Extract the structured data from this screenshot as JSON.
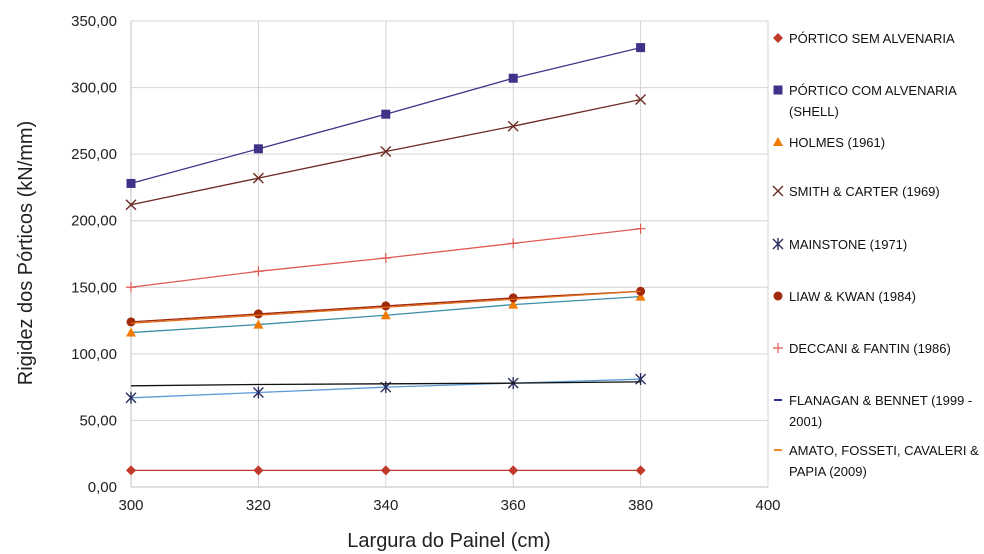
{
  "chart_data": {
    "type": "line",
    "xlabel": "Largura do Painel (cm)",
    "ylabel": "Rigidez dos Pórticos (kN/mm)",
    "xlim": [
      300,
      400
    ],
    "ylim": [
      0,
      350
    ],
    "x_ticks": [
      300,
      320,
      340,
      360,
      380,
      400
    ],
    "y_ticks": [
      "0,00",
      "50,00",
      "100,00",
      "150,00",
      "200,00",
      "250,00",
      "300,00",
      "350,00"
    ],
    "grid": true,
    "legend_position": "right",
    "series": [
      {
        "name": "PÓRTICO SEM ALVENARIA",
        "color": "#c0392b",
        "marker": "diamond",
        "x": [
          300,
          320,
          340,
          360,
          380
        ],
        "y": [
          12.5,
          12.5,
          12.5,
          12.5,
          12.5
        ]
      },
      {
        "name": "PÓRTICO COM ALVENARIA (SHELL)",
        "color": "#3f3288",
        "marker": "square",
        "x": [
          300,
          320,
          340,
          360,
          380
        ],
        "y": [
          228,
          254,
          280,
          307,
          330
        ]
      },
      {
        "name": "HOLMES (1961)",
        "color": "#f07b00",
        "marker": "triangle",
        "line_color": "#3a8fa6",
        "x": [
          300,
          320,
          340,
          360,
          380
        ],
        "y": [
          116,
          122,
          129,
          137,
          143
        ]
      },
      {
        "name": "SMITH & CARTER (1969)",
        "color": "#6b2a22",
        "marker": "x",
        "x": [
          300,
          320,
          340,
          360,
          380
        ],
        "y": [
          212,
          232,
          252,
          271,
          291
        ]
      },
      {
        "name": "MAINSTONE (1971)",
        "color": "#2a2e5e",
        "marker": "asterisk",
        "line_color": "#5b9bd5",
        "x": [
          300,
          320,
          340,
          360,
          380
        ],
        "y": [
          67,
          71,
          75,
          78,
          81
        ]
      },
      {
        "name": "LIAW & KWAN (1984)",
        "color": "#a12a0a",
        "marker": "circle",
        "x": [
          300,
          320,
          340,
          360,
          380
        ],
        "y": [
          124,
          130,
          136,
          142,
          147
        ]
      },
      {
        "name": "DECCANI & FANTIN (1986)",
        "color": "#e05a50",
        "marker": "plus",
        "x": [
          300,
          320,
          340,
          360,
          380
        ],
        "y": [
          150,
          162,
          172,
          183,
          194
        ]
      },
      {
        "name": "FLANAGAN & BENNET (1999 - 2001)",
        "color": "#2b2ba0",
        "marker": "dash",
        "line_color": "#111111",
        "x": [
          300,
          320,
          340,
          360,
          380
        ],
        "y": [
          76,
          77,
          77.5,
          78,
          79
        ]
      },
      {
        "name": "AMATO, FOSSETI, CAVALERI & PAPIA (2009)",
        "color": "#f08a2a",
        "marker": "dash",
        "line_color": "#e06c1a",
        "x": [
          300,
          320,
          340,
          360,
          380
        ],
        "y": [
          123,
          129,
          135,
          141,
          147
        ]
      }
    ]
  }
}
